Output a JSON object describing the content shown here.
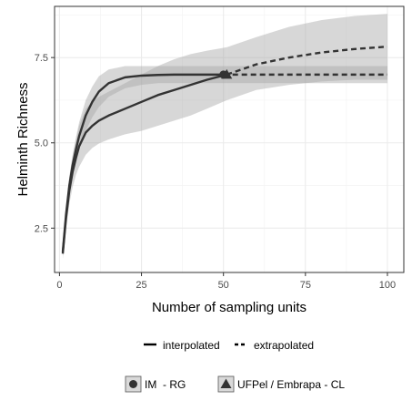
{
  "chart_data": {
    "type": "line",
    "title": "",
    "xlabel": "Number of sampling units",
    "ylabel": "Helminth Richness",
    "xlim": [
      -1.5,
      105
    ],
    "ylim": [
      1.2,
      9.0
    ],
    "x_ticks": [
      0,
      25,
      50,
      75,
      100
    ],
    "x_tick_labels": [
      "0",
      "25",
      "50",
      "75",
      "100"
    ],
    "y_ticks": [
      2.5,
      5.0,
      7.5
    ],
    "y_tick_labels": [
      "2.5",
      "5.0",
      "7.5"
    ],
    "grid": true,
    "series": [
      {
        "name": "IM  - RG",
        "marker": "circle",
        "observed": [
          50,
          7.0
        ],
        "interpolated": {
          "x": [
            1,
            2,
            3,
            4,
            5,
            6,
            8,
            10,
            12,
            15,
            20,
            25,
            30,
            35,
            40,
            45,
            50
          ],
          "y": [
            1.8,
            2.9,
            3.75,
            4.35,
            4.8,
            5.2,
            5.8,
            6.2,
            6.5,
            6.75,
            6.92,
            6.97,
            6.99,
            7.0,
            7.0,
            7.0,
            7.0
          ],
          "lower": [
            1.7,
            2.7,
            3.5,
            4.05,
            4.45,
            4.8,
            5.35,
            5.75,
            6.05,
            6.35,
            6.6,
            6.7,
            6.75,
            6.75,
            6.75,
            6.75,
            6.75
          ],
          "upper": [
            1.9,
            3.1,
            4.0,
            4.65,
            5.15,
            5.6,
            6.25,
            6.65,
            6.95,
            7.15,
            7.25,
            7.25,
            7.25,
            7.25,
            7.25,
            7.25,
            7.25
          ]
        },
        "extrapolated": {
          "x": [
            50,
            60,
            70,
            80,
            90,
            100
          ],
          "y": [
            7.0,
            7.0,
            7.0,
            7.0,
            7.0,
            7.0
          ],
          "lower": [
            6.75,
            6.75,
            6.75,
            6.75,
            6.75,
            6.75
          ],
          "upper": [
            7.25,
            7.25,
            7.25,
            7.25,
            7.25,
            7.25
          ]
        }
      },
      {
        "name": "UFPel / Embrapa - CL",
        "marker": "triangle",
        "observed": [
          51,
          7.0
        ],
        "interpolated": {
          "x": [
            1,
            2,
            3,
            4,
            5,
            6,
            8,
            10,
            12,
            15,
            20,
            25,
            30,
            35,
            40,
            45,
            51
          ],
          "y": [
            1.75,
            2.8,
            3.6,
            4.15,
            4.55,
            4.9,
            5.3,
            5.5,
            5.65,
            5.8,
            6.0,
            6.2,
            6.4,
            6.55,
            6.7,
            6.85,
            7.0
          ],
          "lower": [
            1.6,
            2.5,
            3.2,
            3.7,
            4.05,
            4.3,
            4.65,
            4.85,
            4.98,
            5.1,
            5.25,
            5.35,
            5.5,
            5.65,
            5.8,
            6.0,
            6.25
          ],
          "upper": [
            1.9,
            3.1,
            4.0,
            4.6,
            5.05,
            5.5,
            6.0,
            6.2,
            6.35,
            6.5,
            6.75,
            7.0,
            7.25,
            7.45,
            7.6,
            7.7,
            7.8
          ]
        },
        "extrapolated": {
          "x": [
            51,
            60,
            70,
            80,
            90,
            100
          ],
          "y": [
            7.0,
            7.3,
            7.5,
            7.65,
            7.75,
            7.82
          ],
          "lower": [
            6.25,
            6.55,
            6.7,
            6.8,
            6.85,
            6.85
          ],
          "upper": [
            7.8,
            8.1,
            8.4,
            8.6,
            8.72,
            8.78
          ]
        }
      }
    ],
    "legend": {
      "placement": "bottom",
      "line_types": [
        "interpolated",
        "extrapolated"
      ],
      "groups": [
        "IM  - RG",
        "UFPel / Embrapa - CL"
      ]
    },
    "colors": {
      "line": "#333333",
      "band": "#a6a6a6",
      "grid": "#ebebeb",
      "axis_border": "#333333"
    }
  }
}
